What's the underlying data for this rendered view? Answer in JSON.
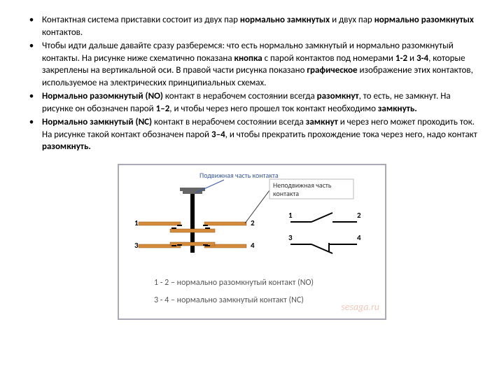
{
  "bullets": [
    {
      "pre": "Контактная система приставки состоит из двух пар ",
      "b1": "нормально замкнутых",
      "mid": " и двух пар ",
      "b2": "нормально разомкнутых",
      "post": " контактов."
    },
    {
      "pre": "Чтобы идти дальше давайте сразу разберемся: что есть нормально замкнутый и нормально разомкнутый контакты. На рисунке ниже схематично показана ",
      "b1": "кнопка",
      "mid": " с парой контактов под номерами ",
      "b2": "1-2",
      "post1": " и ",
      "b3": "3-4",
      "post": ", которые закреплены на вертикальной оси. В правой части рисунка показано ",
      "b4": "графическое",
      "post2": " изображение этих контактов, используемое на электрических принципиальных схемах."
    },
    {
      "b1": "Нормально разомкнутый (NO)",
      "pre": " контакт в нерабочем состоянии всегда ",
      "b2": "разомкнут",
      "mid": ", то есть, не замкнут. На рисунке он обозначен парой ",
      "b3": "1–2",
      "post": ", и чтобы через него прошел ток контакт необходимо ",
      "b4": "замкнуть."
    },
    {
      "b1": "Нормально замкнутый (NC)",
      "pre": " контакт в нерабочем состоянии всегда ",
      "b2": "замкнут",
      "mid": " и через него может проходить ток. На рисунке такой контакт обозначен парой ",
      "b3": "3–4",
      "post": ", и чтобы прекратить прохождение тока через него, надо контакт ",
      "b4": "разомкнуть."
    }
  ],
  "diagram": {
    "legend_top1": "Подвижная часть контакта",
    "legend_top2_a": "Неподвижная часть",
    "legend_top2_b": "контакта",
    "label1": "1",
    "label2": "2",
    "label3": "3",
    "label4": "4",
    "caption1": "1 - 2 – нормально разомкнутый контакт (NO)",
    "caption2": "3 - 4 – нормально замкнутый контакт (NC)",
    "watermark": "sesaga.ru",
    "colors": {
      "copper": "#d68b3a",
      "top": "#666",
      "black": "#000",
      "box": "#bbb",
      "legend1": "#3a5aa8",
      "legend2": "#333"
    }
  }
}
